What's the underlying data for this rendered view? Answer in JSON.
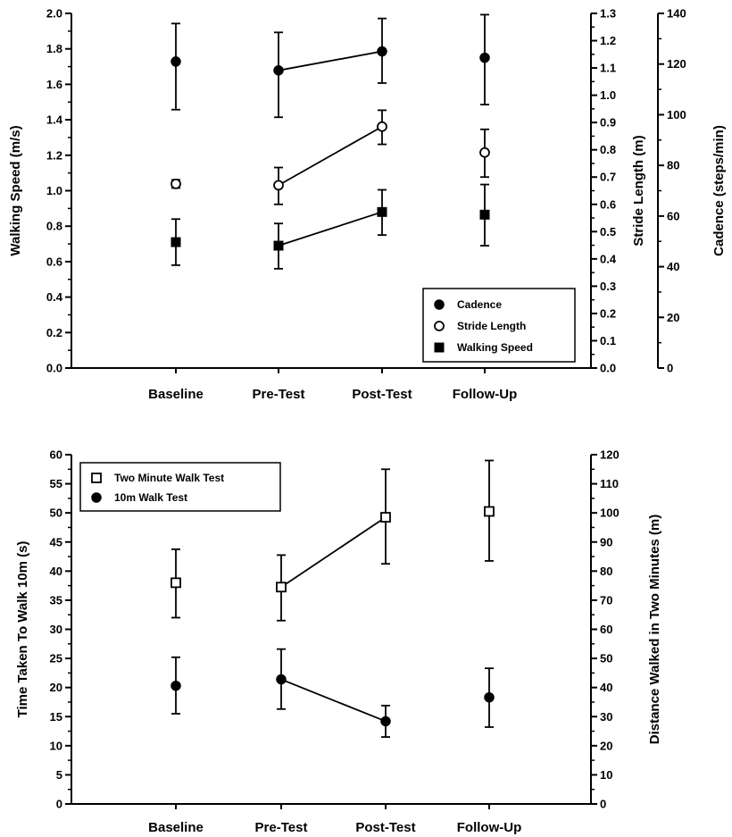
{
  "chart_data": [
    {
      "type": "scatter",
      "categories": [
        "Baseline",
        "Pre-Test",
        "Post-Test",
        "Follow-Up"
      ],
      "legend_placement": "bottom-right",
      "axes": {
        "left": {
          "label": "Walking Speed (m/s)",
          "lim": [
            0,
            2.0
          ],
          "ticks": [
            "0.0",
            "0.2",
            "0.4",
            "0.6",
            "0.8",
            "1.0",
            "1.2",
            "1.4",
            "1.6",
            "1.8",
            "2.0"
          ]
        },
        "right": {
          "label": "Stride Length (m)",
          "lim": [
            0,
            1.3
          ],
          "ticks": [
            "0.0",
            "0.1",
            "0.2",
            "0.3",
            "0.4",
            "0.5",
            "0.6",
            "0.7",
            "0.8",
            "0.9",
            "1.0",
            "1.1",
            "1.2",
            "1.3"
          ]
        },
        "right2": {
          "label": "Cadence (steps/min)",
          "lim": [
            0,
            140
          ],
          "ticks": [
            "0",
            "20",
            "40",
            "60",
            "80",
            "100",
            "120",
            "140"
          ]
        }
      },
      "series": [
        {
          "name": "Cadence",
          "axis": "right2",
          "marker": "filled-circle",
          "values": [
            121,
            117.5,
            125,
            122.5
          ],
          "err_low": [
            102,
            99,
            112.5,
            104
          ],
          "err_high": [
            136,
            132.5,
            138,
            139.5
          ],
          "connect": [
            1,
            2
          ]
        },
        {
          "name": "Stride Length",
          "axis": "right",
          "marker": "open-circle",
          "values": [
            0.675,
            0.67,
            0.885,
            0.79
          ],
          "err_low": [
            0.66,
            0.6,
            0.82,
            0.7
          ],
          "err_high": [
            0.69,
            0.735,
            0.945,
            0.875
          ],
          "connect": [
            1,
            2
          ]
        },
        {
          "name": "Walking Speed",
          "axis": "left",
          "marker": "filled-square",
          "values": [
            0.71,
            0.69,
            0.88,
            0.865
          ],
          "err_low": [
            0.58,
            0.56,
            0.75,
            0.69
          ],
          "err_high": [
            0.84,
            0.815,
            1.005,
            1.035
          ],
          "connect": [
            1,
            2
          ]
        }
      ]
    },
    {
      "type": "scatter",
      "categories": [
        "Baseline",
        "Pre-Test",
        "Post-Test",
        "Follow-Up"
      ],
      "legend_placement": "top-left",
      "axes": {
        "left": {
          "label": "Time Taken To Walk 10m (s)",
          "lim": [
            0,
            60
          ],
          "ticks": [
            "0",
            "5",
            "10",
            "15",
            "20",
            "25",
            "30",
            "35",
            "40",
            "45",
            "50",
            "55",
            "60"
          ]
        },
        "right": {
          "label": "Distance Walked in Two Minutes (m)",
          "lim": [
            0,
            120
          ],
          "ticks": [
            "0",
            "10",
            "20",
            "30",
            "40",
            "50",
            "60",
            "70",
            "80",
            "90",
            "100",
            "110",
            "120"
          ]
        }
      },
      "series": [
        {
          "name": "Two Minute Walk Test",
          "axis": "right",
          "marker": "open-square",
          "values": [
            76,
            74.5,
            98.5,
            100.5
          ],
          "err_low": [
            64,
            63,
            82.5,
            83.5
          ],
          "err_high": [
            87.5,
            85.5,
            115,
            118
          ],
          "connect": [
            1,
            2
          ]
        },
        {
          "name": "10m Walk Test",
          "axis": "left",
          "marker": "filled-circle",
          "values": [
            20.3,
            21.4,
            14.2,
            18.3
          ],
          "err_low": [
            15.5,
            16.3,
            11.5,
            13.2
          ],
          "err_high": [
            25.2,
            26.6,
            16.9,
            23.3
          ],
          "connect": [
            1,
            2
          ]
        }
      ]
    }
  ]
}
